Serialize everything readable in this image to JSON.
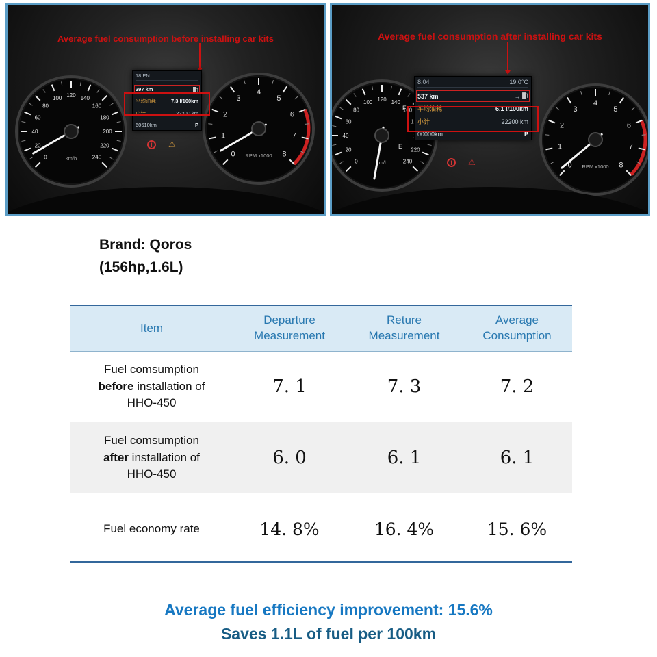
{
  "panels": {
    "left": {
      "caption": "Average fuel consumption before installing car kits",
      "lcd": {
        "time": "18 EN",
        "trip": "397 km",
        "avg_label": "平均油耗",
        "avg_value": "7.3 l/100km",
        "total_label": "小计",
        "total_value": "22200 km",
        "odo": "60610km",
        "gear": "P"
      },
      "speedo": {
        "labels": [
          "0",
          "20",
          "40",
          "60",
          "80",
          "100",
          "120",
          "140",
          "160",
          "180",
          "200",
          "220",
          "240"
        ],
        "unit": "km/h",
        "needle_deg": 150,
        "label_size": 8
      },
      "tach": {
        "labels": [
          "0",
          "1",
          "2",
          "3",
          "4",
          "5",
          "6",
          "7",
          "8"
        ],
        "unit": "RPM x1000",
        "needle_deg": 150,
        "label_size": 11,
        "red_from": 6,
        "red_to": 8
      }
    },
    "right": {
      "caption": "Average fuel consumption after installing car kits",
      "lcd": {
        "time": "8.04",
        "temp": "19.0°C",
        "trip": "537 km",
        "trip_arrow": "→",
        "avg_label": "平均油耗",
        "avg_value": "6.1 l/100km",
        "total_label": "小计",
        "total_value": "22200 km",
        "odo": "00000km",
        "gear": "P"
      },
      "fuel": {
        "full": "F",
        "empty": "E"
      },
      "speedo": {
        "labels": [
          "0",
          "20",
          "40",
          "60",
          "80",
          "100",
          "120",
          "140",
          "160",
          "180",
          "200",
          "220",
          "240"
        ],
        "unit": "km/h",
        "needle_deg": 100,
        "label_size": 8
      },
      "tach": {
        "labels": [
          "0",
          "1",
          "2",
          "3",
          "4",
          "5",
          "6",
          "7",
          "8"
        ],
        "unit": "RPM x1000",
        "needle_deg": 140,
        "label_size": 11,
        "red_from": 6,
        "red_to": 8
      }
    }
  },
  "icons": {
    "brake_glyph": "!",
    "warning_glyph": "⚠"
  },
  "brand": {
    "line1": "Brand: Qoros",
    "line2": "(156hp,1.6L)"
  },
  "table": {
    "headers": {
      "item": "Item",
      "col1": {
        "line1": "Departure",
        "line2": "Measurement"
      },
      "col2": {
        "line1": "Reture",
        "line2": "Measurement"
      },
      "col3": {
        "line1": "Average",
        "line2": "Consumption"
      }
    },
    "rows": [
      {
        "item": {
          "line1": "Fuel comsumption",
          "bold": "before",
          "after_bold": " installation of",
          "line3": "HHO-450"
        },
        "v1": "7. 1",
        "v2": "7. 3",
        "v3": "7. 2"
      },
      {
        "item": {
          "line1": "Fuel comsumption",
          "bold": "after",
          "after_bold": " installation of",
          "line3": "HHO-450"
        },
        "v1": "6. 0",
        "v2": "6. 1",
        "v3": "6. 1"
      },
      {
        "item_simple": "Fuel economy rate",
        "v1": "14. 8%",
        "v2": "16. 4%",
        "v3": "15. 6%"
      }
    ]
  },
  "footer": {
    "line1": "Average fuel efficiency improvement: 15.6%",
    "line2": "Saves 1.1L of fuel per 100km"
  },
  "colors": {
    "accent_blue": "#2878b0",
    "header_bg": "#d9eaf5",
    "annotation_red": "#cc1111",
    "row_alt_bg": "#f0f0f0",
    "border_blue": "#33679b",
    "footer_blue_1": "#1778c2",
    "footer_blue_2": "#175c84",
    "photo_border_blue": "#5b9dc6"
  }
}
